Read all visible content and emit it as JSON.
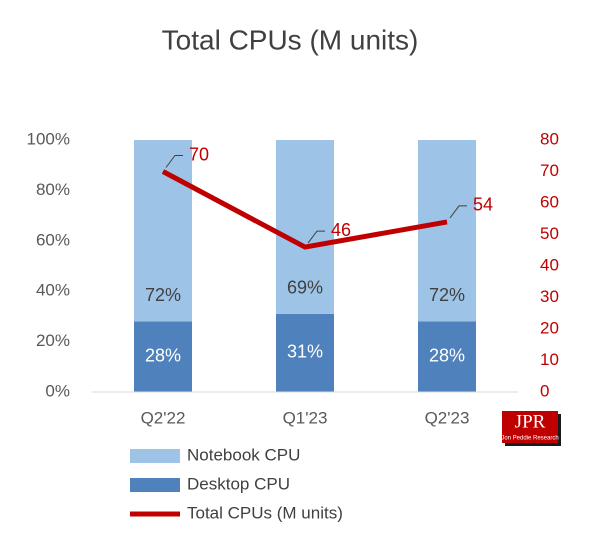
{
  "chart_data": {
    "type": "bar",
    "stacked": true,
    "title": "Total CPUs (M units)",
    "categories": [
      "Q2'22",
      "Q1'23",
      "Q2'23"
    ],
    "series": [
      {
        "name": "Notebook CPU",
        "color": "#9dc3e6",
        "label_color": "#404040",
        "values": [
          72,
          69,
          72
        ],
        "value_labels": [
          "72%",
          "69%",
          "72%"
        ]
      },
      {
        "name": "Desktop CPU",
        "color": "#4f81bd",
        "label_color": "#ffffff",
        "values": [
          28,
          31,
          28
        ],
        "value_labels": [
          "28%",
          "31%",
          "28%"
        ]
      },
      {
        "name": "Total CPUs (M units)",
        "type": "line",
        "axis": "y2",
        "color": "#c00000",
        "values": [
          70,
          46,
          54
        ]
      }
    ],
    "ylim": [
      0,
      100
    ],
    "yticks": [
      {
        "value": 0,
        "label": "0%"
      },
      {
        "value": 20,
        "label": "20%"
      },
      {
        "value": 40,
        "label": "40%"
      },
      {
        "value": 60,
        "label": "60%"
      },
      {
        "value": 80,
        "label": "80%"
      },
      {
        "value": 100,
        "label": "100%"
      }
    ],
    "y2lim": [
      0,
      80
    ],
    "y2ticks": [
      0,
      10,
      20,
      30,
      40,
      50,
      60,
      70,
      80
    ],
    "y2_color": "#c00000",
    "legend": "bottom",
    "grid": false
  },
  "logo": {
    "text": "JPR",
    "subtitle": "Jon Peddie Research"
  }
}
